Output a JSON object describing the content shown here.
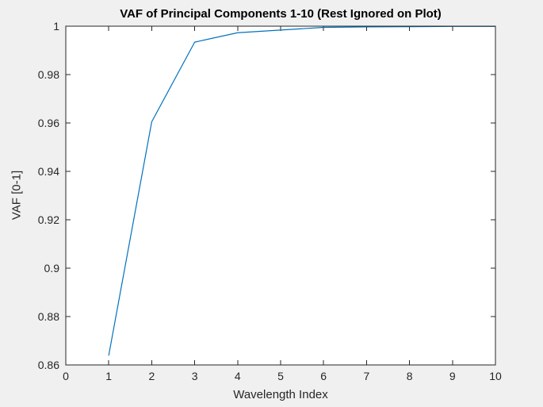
{
  "figure": {
    "background_color": "#F0F0F0",
    "plot_background_color": "#FFFFFF",
    "axis_color": "#262626"
  },
  "chart_data": {
    "type": "line",
    "title": "VAF of Principal Components 1-10 (Rest Ignored on Plot)",
    "xlabel": "Wavelength Index",
    "ylabel": "VAF [0-1]",
    "x": [
      1,
      2,
      3,
      4,
      5,
      6,
      7,
      8,
      9,
      10
    ],
    "y": [
      0.864,
      0.9605,
      0.9934,
      0.9973,
      0.9984,
      0.9995,
      0.9997,
      0.9998,
      0.9999,
      0.9999
    ],
    "xlim": [
      0,
      10
    ],
    "ylim": [
      0.86,
      1
    ],
    "x_ticks": [
      0,
      1,
      2,
      3,
      4,
      5,
      6,
      7,
      8,
      9,
      10
    ],
    "x_tick_labels": [
      "0",
      "1",
      "2",
      "3",
      "4",
      "5",
      "6",
      "7",
      "8",
      "9",
      "10"
    ],
    "y_ticks": [
      0.86,
      0.88,
      0.9,
      0.92,
      0.94,
      0.96,
      0.98,
      1
    ],
    "y_tick_labels": [
      "0.86",
      "0.88",
      "0.9",
      "0.92",
      "0.94",
      "0.96",
      "0.98",
      "1"
    ],
    "line_color": "#0072BD",
    "grid": false,
    "legend": null,
    "box": true,
    "ticks_direction": "in"
  }
}
